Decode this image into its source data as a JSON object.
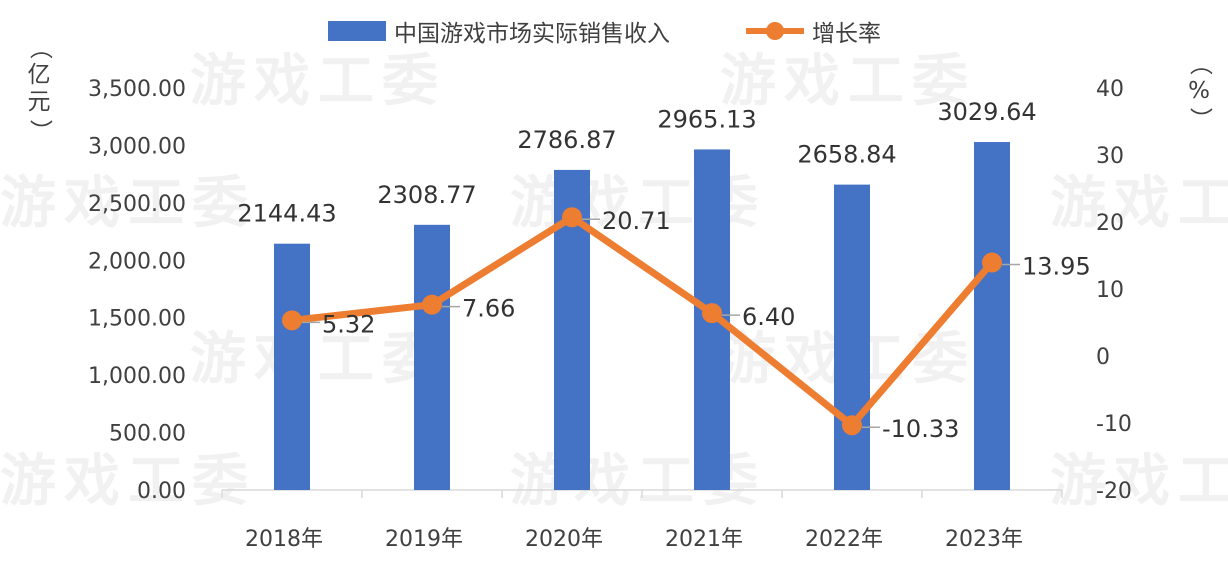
{
  "chart_data": {
    "type": "bar+line",
    "categories": [
      "2018年",
      "2019年",
      "2020年",
      "2021年",
      "2022年",
      "2023年"
    ],
    "series": [
      {
        "name": "中国游戏市场实际销售收入",
        "type": "bar",
        "axis": "left",
        "color": "#4472c4",
        "values": [
          2144.43,
          2308.77,
          2786.87,
          2965.13,
          2658.84,
          3029.64
        ],
        "labels": [
          "2144.43",
          "2308.77",
          "2786.87",
          "2965.13",
          "2658.84",
          "3029.64"
        ]
      },
      {
        "name": "增长率",
        "type": "line",
        "axis": "right",
        "color": "#ed7d31",
        "values": [
          5.32,
          7.66,
          20.71,
          6.4,
          -10.33,
          13.95
        ],
        "labels": [
          "5.32",
          "7.66",
          "20.71",
          "6.40",
          "-10.33",
          "13.95"
        ]
      }
    ],
    "y_left": {
      "unit_label": "（亿元）",
      "unit_chars": [
        "（",
        "亿",
        "元",
        "）"
      ],
      "ylim": [
        0,
        3500
      ],
      "ticks": [
        0,
        500,
        1000,
        1500,
        2000,
        2500,
        3000,
        3500
      ],
      "tick_labels": [
        "0.00",
        "500.00",
        "1,000.00",
        "1,500.00",
        "2,000.00",
        "2,500.00",
        "3,000.00",
        "3,500.00"
      ]
    },
    "y_right": {
      "unit_label": "（%）",
      "unit_chars": [
        "（",
        "%",
        "）"
      ],
      "ylim": [
        -20,
        40
      ],
      "ticks": [
        -20,
        -10,
        0,
        10,
        20,
        30,
        40
      ],
      "tick_labels": [
        "-20",
        "-10",
        "0",
        "10",
        "20",
        "30",
        "40"
      ]
    },
    "legend_position": "top-center",
    "grid": false,
    "watermark": "游戏工委"
  }
}
